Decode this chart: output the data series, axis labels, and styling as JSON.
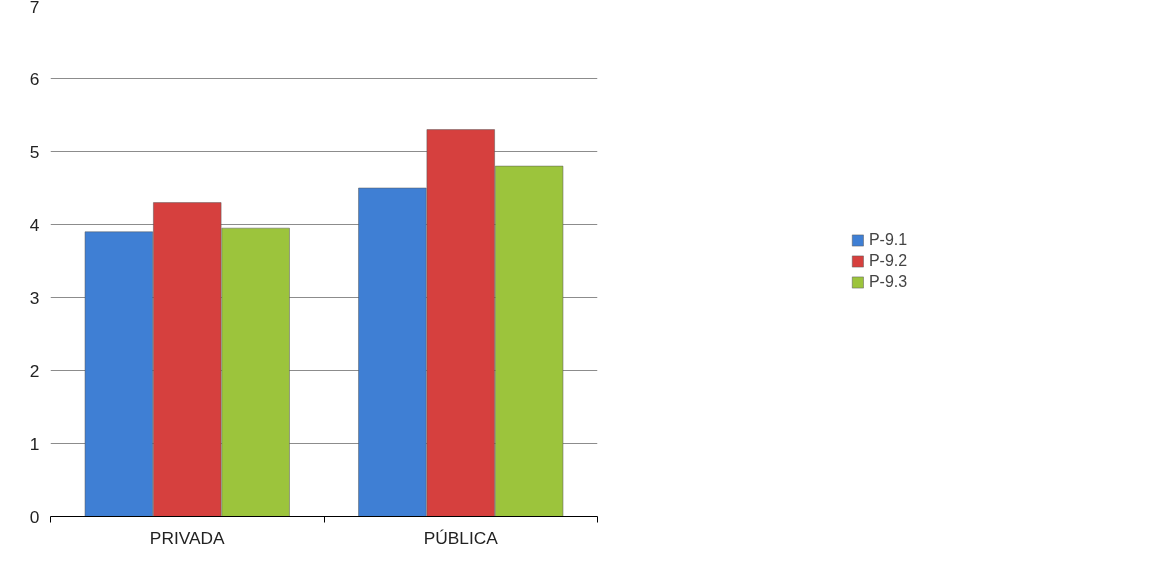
{
  "chart_data": {
    "type": "bar",
    "categories": [
      "PRIVADA",
      "PÚBLICA"
    ],
    "series": [
      {
        "name": "P-9.1",
        "color": "#3f7fd4",
        "values": [
          3.9,
          4.5
        ]
      },
      {
        "name": "P-9.2",
        "color": "#d6403e",
        "values": [
          4.3,
          5.3
        ]
      },
      {
        "name": "P-9.3",
        "color": "#9cc43c",
        "values": [
          3.95,
          4.8
        ]
      }
    ],
    "ylim": [
      0,
      7
    ],
    "yticks": [
      0,
      1,
      2,
      3,
      4,
      5,
      6,
      7
    ],
    "grid": "y",
    "legend": "right"
  }
}
